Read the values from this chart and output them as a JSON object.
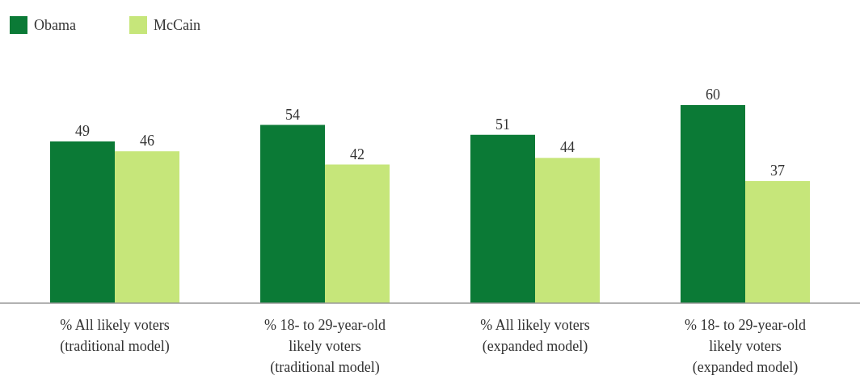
{
  "chart_data": {
    "type": "bar",
    "categories": [
      "% All likely voters\n(traditional model)",
      "% 18- to 29-year-old\nlikely voters\n(traditional model)",
      "% All likely voters\n(expanded model)",
      "% 18- to 29-year-old\nlikely voters\n(expanded model)"
    ],
    "series": [
      {
        "name": "Obama",
        "color": "#0b7a36",
        "values": [
          49,
          54,
          51,
          60
        ]
      },
      {
        "name": "McCain",
        "color": "#c6e67a",
        "values": [
          46,
          42,
          44,
          37
        ]
      }
    ],
    "data_labels": true,
    "legend": "top left"
  }
}
